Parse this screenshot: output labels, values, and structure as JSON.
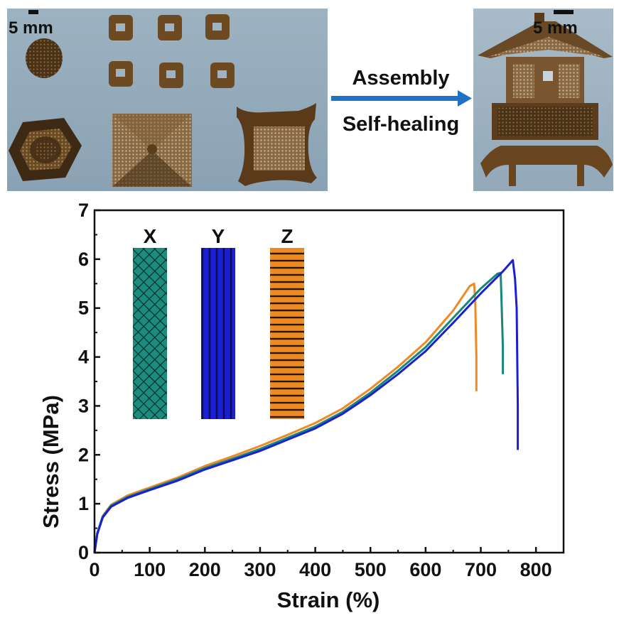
{
  "photos": {
    "left_scale_label": "5 mm",
    "right_scale_label": "5 mm",
    "arrow_label_top": "Assembly",
    "arrow_label_bottom": "Self-healing"
  },
  "colors": {
    "X": "#16877a",
    "Y": "#1a1fd6",
    "Z": "#ee8a24",
    "arrow": "#1f72c4",
    "photo_bg": "#8fa6b6"
  },
  "chart_data": {
    "type": "line",
    "xlabel": "Strain (%)",
    "ylabel": "Stress (MPa)",
    "xlim": [
      0,
      850
    ],
    "ylim": [
      0,
      7
    ],
    "xticks": [
      0,
      100,
      200,
      300,
      400,
      500,
      600,
      700,
      800
    ],
    "yticks": [
      0,
      1,
      2,
      3,
      4,
      5,
      6,
      7
    ],
    "grid": false,
    "inset_labels": [
      "X",
      "Y",
      "Z"
    ],
    "series": [
      {
        "name": "Z",
        "color": "#ee8a24",
        "points": [
          [
            0,
            0
          ],
          [
            5,
            0.4
          ],
          [
            15,
            0.75
          ],
          [
            30,
            0.98
          ],
          [
            60,
            1.17
          ],
          [
            100,
            1.33
          ],
          [
            150,
            1.53
          ],
          [
            200,
            1.77
          ],
          [
            250,
            1.97
          ],
          [
            300,
            2.18
          ],
          [
            350,
            2.41
          ],
          [
            400,
            2.65
          ],
          [
            450,
            2.95
          ],
          [
            500,
            3.35
          ],
          [
            550,
            3.8
          ],
          [
            600,
            4.3
          ],
          [
            650,
            4.95
          ],
          [
            680,
            5.45
          ],
          [
            688,
            5.5
          ],
          [
            690,
            5.1
          ],
          [
            692,
            4.0
          ],
          [
            692,
            3.3
          ]
        ]
      },
      {
        "name": "X",
        "color": "#16877a",
        "points": [
          [
            0,
            0
          ],
          [
            5,
            0.4
          ],
          [
            15,
            0.74
          ],
          [
            30,
            0.96
          ],
          [
            60,
            1.14
          ],
          [
            100,
            1.3
          ],
          [
            150,
            1.5
          ],
          [
            200,
            1.73
          ],
          [
            250,
            1.92
          ],
          [
            300,
            2.12
          ],
          [
            350,
            2.35
          ],
          [
            400,
            2.58
          ],
          [
            450,
            2.88
          ],
          [
            500,
            3.27
          ],
          [
            550,
            3.72
          ],
          [
            600,
            4.2
          ],
          [
            650,
            4.8
          ],
          [
            700,
            5.4
          ],
          [
            730,
            5.7
          ],
          [
            736,
            5.72
          ],
          [
            738,
            5.0
          ],
          [
            740,
            4.2
          ],
          [
            740,
            3.65
          ]
        ]
      },
      {
        "name": "Y",
        "color": "#1a1fd6",
        "points": [
          [
            0,
            0
          ],
          [
            5,
            0.38
          ],
          [
            15,
            0.72
          ],
          [
            30,
            0.94
          ],
          [
            60,
            1.12
          ],
          [
            100,
            1.28
          ],
          [
            150,
            1.47
          ],
          [
            200,
            1.7
          ],
          [
            250,
            1.89
          ],
          [
            300,
            2.08
          ],
          [
            350,
            2.31
          ],
          [
            400,
            2.54
          ],
          [
            450,
            2.84
          ],
          [
            500,
            3.22
          ],
          [
            550,
            3.65
          ],
          [
            600,
            4.12
          ],
          [
            650,
            4.7
          ],
          [
            700,
            5.3
          ],
          [
            740,
            5.75
          ],
          [
            758,
            5.98
          ],
          [
            762,
            5.6
          ],
          [
            765,
            5.0
          ],
          [
            766,
            4.0
          ],
          [
            767,
            3.0
          ],
          [
            767,
            2.1
          ]
        ]
      }
    ]
  }
}
